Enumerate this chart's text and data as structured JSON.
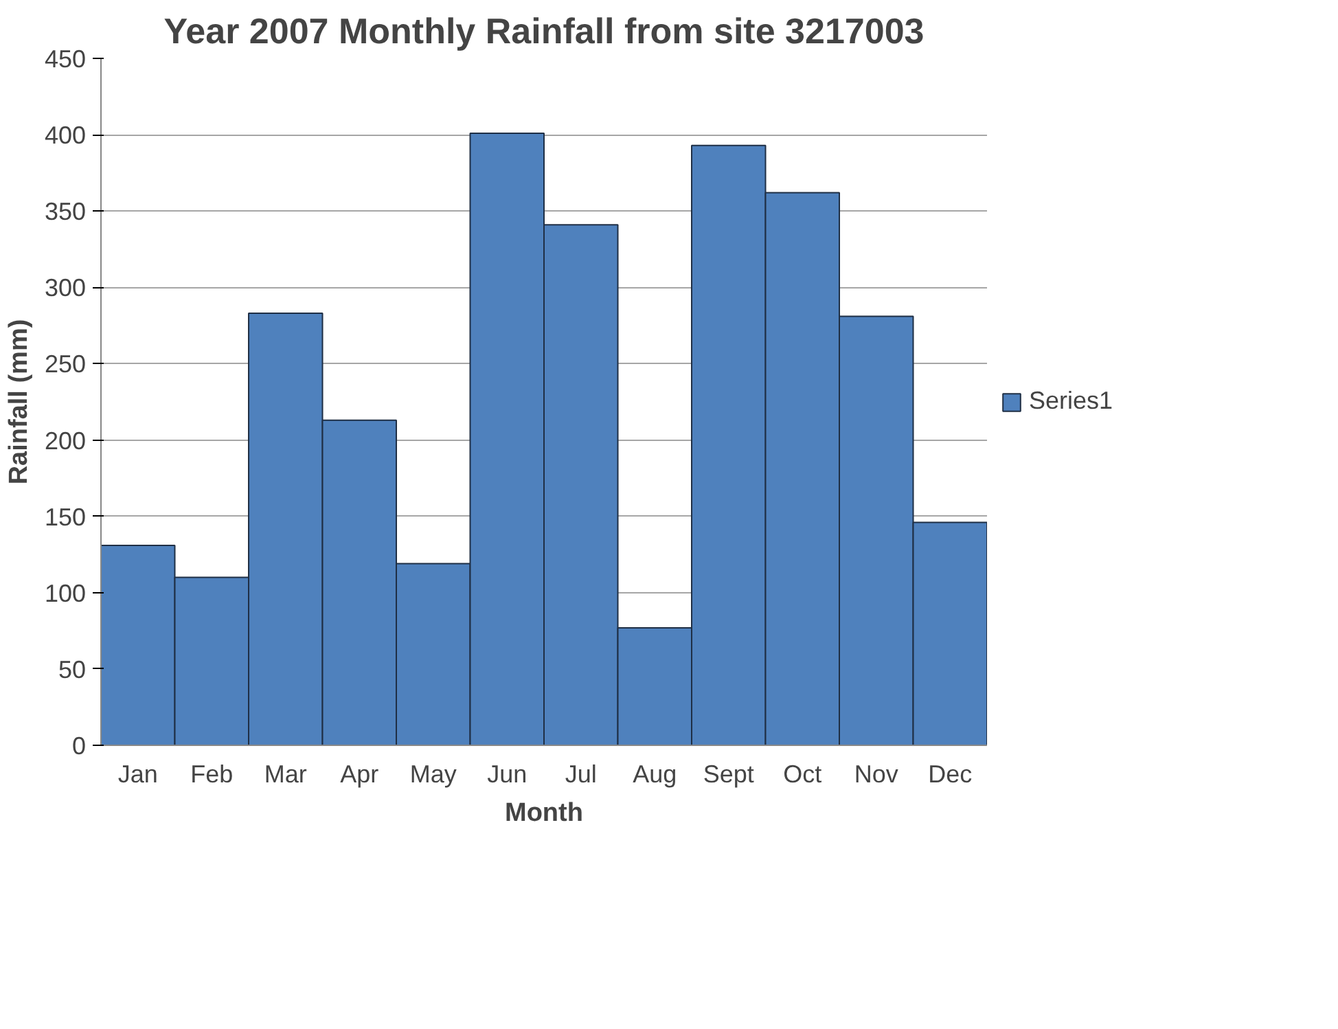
{
  "chart_data": {
    "type": "bar",
    "title": "Year 2007 Monthly Rainfall from site 3217003",
    "xlabel": "Month",
    "ylabel": "Rainfall (mm)",
    "categories": [
      "Jan",
      "Feb",
      "Mar",
      "Apr",
      "May",
      "Jun",
      "Jul",
      "Aug",
      "Sept",
      "Oct",
      "Nov",
      "Dec"
    ],
    "series": [
      {
        "name": "Series1",
        "color": "#4f81bd",
        "values": [
          131,
          110,
          283,
          213,
          119,
          401,
          341,
          77,
          393,
          362,
          281,
          146
        ]
      }
    ],
    "ylim": [
      0,
      450
    ],
    "yticks": [
      0,
      50,
      100,
      150,
      200,
      250,
      300,
      350,
      400,
      450
    ],
    "grid": "y",
    "legend": "right"
  }
}
